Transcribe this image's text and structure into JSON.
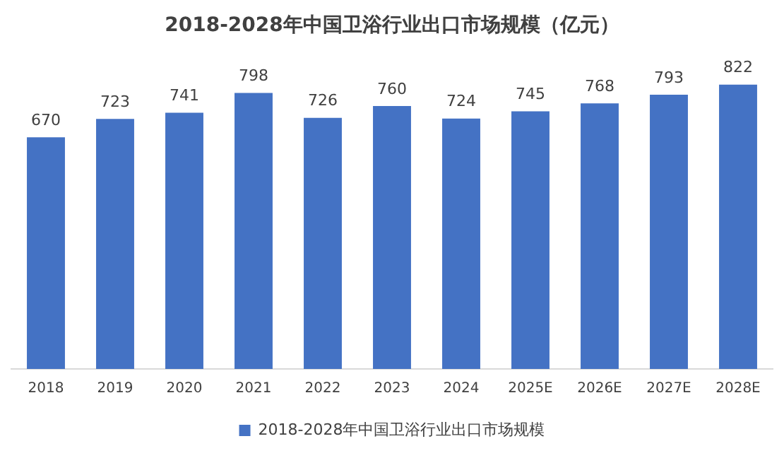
{
  "chart_data": {
    "type": "bar",
    "title": "2018-2028年中国卫浴行业出口市场规模（亿元）",
    "categories": [
      "2018",
      "2019",
      "2020",
      "2021",
      "2022",
      "2023",
      "2024",
      "2025E",
      "2026E",
      "2027E",
      "2028E"
    ],
    "series": [
      {
        "name": "2018-2028年中国卫浴行业出口市场规模",
        "color": "#4472c4",
        "values": [
          670,
          723,
          741,
          798,
          726,
          760,
          724,
          745,
          768,
          793,
          822
        ]
      }
    ],
    "data_labels": true,
    "grid": false,
    "legend": "bottom"
  }
}
